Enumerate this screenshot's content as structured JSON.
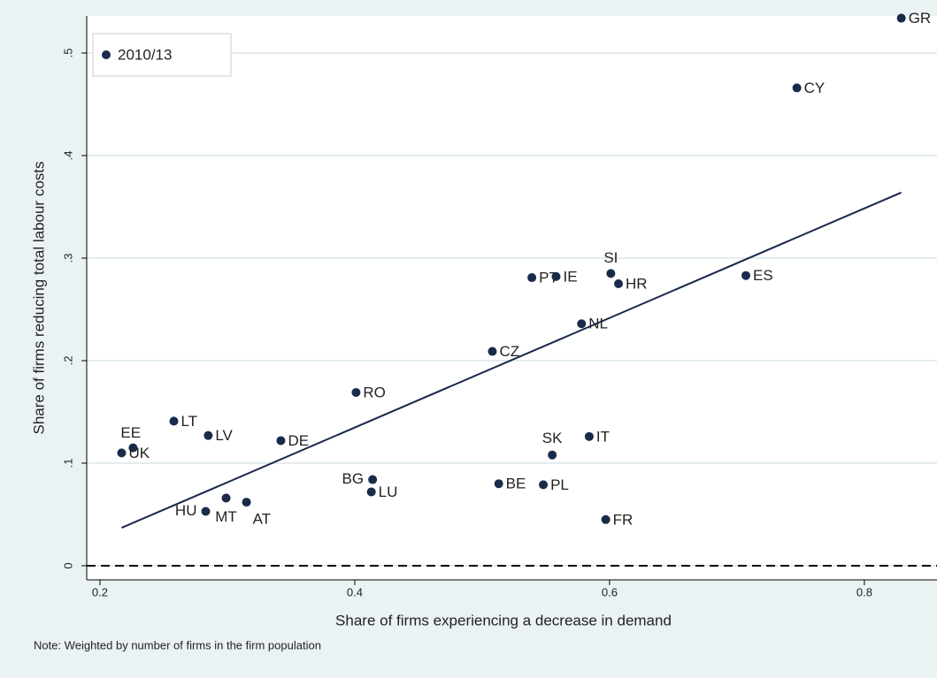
{
  "chart_data": {
    "type": "scatter",
    "x_label": "Share of firms experiencing a decrease in demand",
    "y_label": "Share of firms reducing total labour costs",
    "note": "Note: Weighted by number of firms in the firm population",
    "xlim": [
      0.1896,
      0.8438
    ],
    "ylim": [
      -0.0138,
      0.5362
    ],
    "xticks": [
      0.2,
      0.4,
      0.6,
      0.8
    ],
    "yticks": [
      0,
      {
        "value": 0.1,
        "label": ".1"
      },
      {
        "value": 0.2,
        "label": ".2"
      },
      {
        "value": 0.3,
        "label": ".3"
      },
      {
        "value": 0.4,
        "label": ".4"
      },
      {
        "value": 0.5,
        "label": ".5"
      }
    ],
    "grid": true,
    "legend": "top-left",
    "reference_y": 0,
    "series": [
      {
        "name": "2010/13",
        "color": "#1a2a4a",
        "labels": [
          "GR",
          "CY",
          "ES",
          "SI",
          "HR",
          "PT",
          "IE",
          "NL",
          "CZ",
          "RO",
          "LT",
          "LV",
          "DE",
          "EE",
          "UK",
          "SK",
          "IT",
          "BG",
          "LU",
          "BE",
          "PL",
          "FR",
          "HU",
          "MT",
          "AT"
        ],
        "x": [
          0.829,
          0.747,
          0.707,
          0.601,
          0.607,
          0.539,
          0.558,
          0.578,
          0.508,
          0.401,
          0.258,
          0.285,
          0.342,
          0.226,
          0.217,
          0.555,
          0.584,
          0.414,
          0.413,
          0.513,
          0.548,
          0.597,
          0.283,
          0.299,
          0.315
        ],
        "values": [
          0.534,
          0.466,
          0.283,
          0.285,
          0.275,
          0.281,
          0.282,
          0.236,
          0.209,
          0.169,
          0.141,
          0.127,
          0.122,
          0.115,
          0.11,
          0.108,
          0.126,
          0.084,
          0.072,
          0.08,
          0.079,
          0.045,
          0.053,
          0.066,
          0.062
        ]
      }
    ],
    "fit_line": {
      "color": "#1a2a4a",
      "x": [
        0.217,
        0.829
      ],
      "values": [
        0.037,
        0.364
      ]
    }
  }
}
